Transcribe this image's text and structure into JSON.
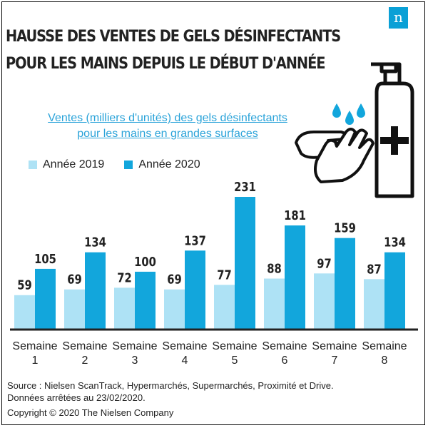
{
  "brand": {
    "logo_letter": "n"
  },
  "header": {
    "title_line1": "HAUSSE DES VENTES DE GELS DÉSINFECTANTS",
    "title_line2": "POUR LES MAINS DEPUIS LE DÉBUT D'ANNÉE"
  },
  "subtitle": {
    "line1": "Ventes (milliers d'unités) des gels désinfectants",
    "line2": "pour les mains en grandes surfaces"
  },
  "colors": {
    "series_2019": "#aee2f5",
    "series_2020": "#12a6dc",
    "subtitle": "#2aa3d9",
    "baseline": "#222222"
  },
  "illustration": {
    "icons": [
      "hand-sanitizer-bottle-icon",
      "washing-hands-icon",
      "water-drops-icon",
      "medical-cross-icon"
    ]
  },
  "chart_data": {
    "type": "bar",
    "title": "Ventes (milliers d'unités) des gels désinfectants pour les mains en grandes surfaces",
    "categories": [
      "Semaine 1",
      "Semaine 2",
      "Semaine 3",
      "Semaine 4",
      "Semaine 5",
      "Semaine 6",
      "Semaine 7",
      "Semaine 8"
    ],
    "category_lines": [
      [
        "Semaine",
        "1"
      ],
      [
        "Semaine",
        "2"
      ],
      [
        "Semaine",
        "3"
      ],
      [
        "Semaine",
        "4"
      ],
      [
        "Semaine",
        "5"
      ],
      [
        "Semaine",
        "6"
      ],
      [
        "Semaine",
        "7"
      ],
      [
        "Semaine",
        "8"
      ]
    ],
    "series": [
      {
        "name": "Année 2019",
        "values": [
          59,
          69,
          72,
          69,
          77,
          88,
          97,
          87
        ]
      },
      {
        "name": "Année 2020",
        "values": [
          105,
          134,
          100,
          137,
          231,
          181,
          159,
          134
        ]
      }
    ],
    "ylim": [
      0,
      231
    ],
    "grid": false,
    "legend": "top-left",
    "data_labels": true
  },
  "footer": {
    "source_line1": "Source : Nielsen ScanTrack, Hypermarchés, Supermarchés, Proximité et Drive.",
    "source_line2": "Données arrêtées au 23/02/2020.",
    "copyright": "Copyright © 2020 The Nielsen Company"
  }
}
